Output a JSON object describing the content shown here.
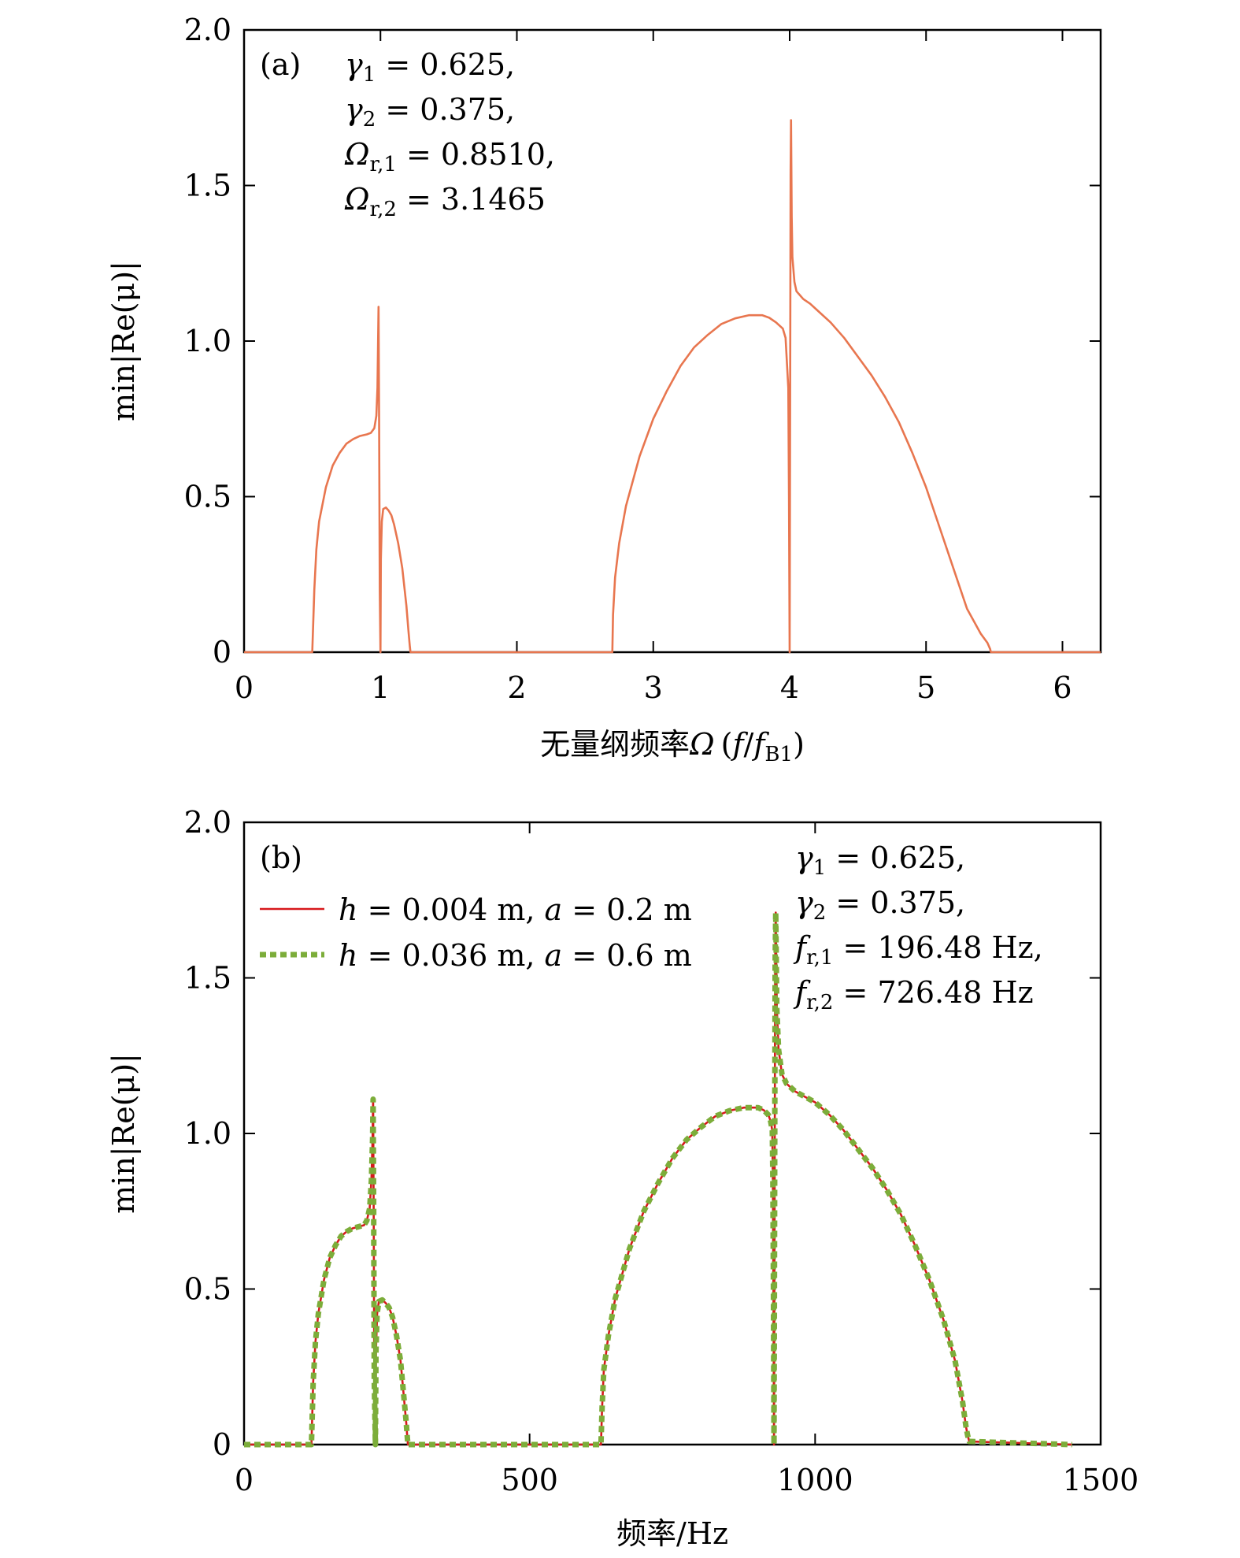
{
  "chart_data": [
    {
      "type": "line",
      "panel_label": "(a)",
      "ylabel": "min|Re(μ)|",
      "xlabel_prefix": "无量纲频率",
      "xlabel_symbol": "Ω",
      "xlabel_paren_open": "(",
      "xlabel_f": "f",
      "xlabel_slash": "/",
      "xlabel_fb": "f",
      "xlabel_fb_sub": "B1",
      "xlabel_paren_close": ")",
      "xlim": [
        0,
        6.28
      ],
      "ylim": [
        0,
        2.0
      ],
      "x_ticks": [
        "0",
        "1",
        "2",
        "3",
        "4",
        "5",
        "6"
      ],
      "x_tick_values": [
        0,
        1,
        2,
        3,
        4,
        5,
        6
      ],
      "y_ticks": [
        "0",
        "0.5",
        "1.0",
        "1.5",
        "2.0"
      ],
      "y_tick_values": [
        0,
        0.5,
        1.0,
        1.5,
        2.0
      ],
      "params": [
        {
          "sym": "γ",
          "sub": "1",
          "rest": " = 0.625,"
        },
        {
          "sym": "γ",
          "sub": "2",
          "rest": " = 0.375,"
        },
        {
          "sym": "Ω",
          "sub": "r,1",
          "rest": " = 0.8510,"
        },
        {
          "sym": "Ω",
          "sub": "r,2",
          "rest": " = 3.1465"
        }
      ],
      "series": [
        {
          "name": "min|Re(μ)|",
          "color": "#e8764f",
          "style": "solid",
          "x": [
            0,
            0.5,
            0.515,
            0.53,
            0.55,
            0.6,
            0.65,
            0.7,
            0.75,
            0.8,
            0.85,
            0.9,
            0.93,
            0.955,
            0.97,
            0.978,
            0.982,
            0.986,
            0.99,
            0.995,
            1.0,
            1.003,
            1.01,
            1.02,
            1.04,
            1.06,
            1.08,
            1.1,
            1.13,
            1.16,
            1.19,
            1.205,
            1.215,
            1.22,
            2.7,
            2.705,
            2.72,
            2.75,
            2.8,
            2.9,
            3.0,
            3.1,
            3.2,
            3.3,
            3.4,
            3.5,
            3.6,
            3.7,
            3.8,
            3.85,
            3.9,
            3.95,
            3.97,
            3.99,
            3.995,
            4.0,
            4.003,
            4.007,
            4.01,
            4.015,
            4.02,
            4.035,
            4.05,
            4.1,
            4.15,
            4.2,
            4.3,
            4.4,
            4.5,
            4.6,
            4.7,
            4.8,
            4.9,
            5.0,
            5.1,
            5.2,
            5.3,
            5.4,
            5.45,
            5.47,
            5.475,
            6.28
          ],
          "y": [
            0,
            0,
            0.2,
            0.33,
            0.42,
            0.53,
            0.6,
            0.64,
            0.67,
            0.685,
            0.695,
            0.7,
            0.705,
            0.72,
            0.76,
            0.85,
            0.98,
            1.11,
            0.75,
            0.2,
            0,
            0.3,
            0.42,
            0.46,
            0.465,
            0.455,
            0.44,
            0.41,
            0.35,
            0.27,
            0.15,
            0.07,
            0.02,
            0,
            0,
            0.12,
            0.24,
            0.35,
            0.47,
            0.63,
            0.75,
            0.84,
            0.92,
            0.98,
            1.02,
            1.055,
            1.073,
            1.083,
            1.083,
            1.075,
            1.06,
            1.04,
            1.01,
            0.85,
            0.5,
            0,
            0.7,
            1.55,
            1.71,
            1.4,
            1.27,
            1.19,
            1.16,
            1.135,
            1.12,
            1.1,
            1.06,
            1.01,
            0.95,
            0.89,
            0.82,
            0.74,
            0.64,
            0.53,
            0.4,
            0.27,
            0.14,
            0.06,
            0.03,
            0.01,
            0,
            0
          ]
        }
      ]
    },
    {
      "type": "line",
      "panel_label": "(b)",
      "ylabel": "min|Re(μ)|",
      "xlabel": "频率/Hz",
      "xlim": [
        0,
        1500
      ],
      "ylim": [
        0,
        2.0
      ],
      "x_ticks": [
        "0",
        "500",
        "1000",
        "1500"
      ],
      "x_tick_values": [
        0,
        500,
        1000,
        1500
      ],
      "y_ticks": [
        "0",
        "0.5",
        "1.0",
        "1.5",
        "2.0"
      ],
      "y_tick_values": [
        0,
        0.5,
        1.0,
        1.5,
        2.0
      ],
      "params": [
        {
          "sym": "γ",
          "sub": "1",
          "rest": " = 0.625,"
        },
        {
          "sym": "γ",
          "sub": "2",
          "rest": " = 0.375,"
        },
        {
          "sym": "f",
          "sub": "r,1",
          "rest": " = 196.48 Hz,"
        },
        {
          "sym": "f",
          "sub": "r,2",
          "rest": " = 726.48 Hz"
        }
      ],
      "legend": [
        {
          "h": "h",
          "h_val": " = 0.004 m, ",
          "a": "a",
          "a_val": " = 0.2 m"
        },
        {
          "h": "h",
          "h_val": " = 0.036 m, ",
          "a": "a",
          "a_val": " = 0.6 m"
        }
      ],
      "series": [
        {
          "name": "h = 0.004 m, a = 0.2 m",
          "color": "#d7191c",
          "style": "solid",
          "x": [
            0,
            118,
            121,
            125,
            130,
            140,
            150,
            160,
            170,
            180,
            190,
            200,
            210,
            215,
            220,
            223,
            225,
            226,
            227,
            228,
            230,
            231,
            233,
            236,
            242,
            248,
            254,
            260,
            267,
            274,
            280,
            284,
            286,
            287,
            625,
            627,
            630,
            638,
            650,
            675,
            700,
            725,
            750,
            775,
            800,
            825,
            850,
            875,
            900,
            910,
            918,
            922,
            925,
            926,
            927,
            928,
            929,
            930,
            931,
            933,
            936,
            942,
            950,
            965,
            980,
            1000,
            1025,
            1050,
            1075,
            1100,
            1125,
            1150,
            1175,
            1200,
            1225,
            1245,
            1258,
            1264,
            1267,
            1270,
            1450
          ],
          "y": [
            0,
            0,
            0.2,
            0.33,
            0.42,
            0.53,
            0.6,
            0.64,
            0.67,
            0.685,
            0.695,
            0.7,
            0.705,
            0.72,
            0.76,
            0.85,
            0.98,
            1.11,
            0.75,
            0.2,
            0,
            0.3,
            0.42,
            0.46,
            0.465,
            0.455,
            0.44,
            0.41,
            0.35,
            0.27,
            0.15,
            0.07,
            0.02,
            0,
            0,
            0.12,
            0.24,
            0.35,
            0.47,
            0.63,
            0.75,
            0.84,
            0.92,
            0.98,
            1.02,
            1.055,
            1.073,
            1.083,
            1.083,
            1.075,
            1.06,
            1.04,
            1.01,
            0.85,
            0.5,
            0,
            0.7,
            1.55,
            1.71,
            1.4,
            1.27,
            1.19,
            1.16,
            1.135,
            1.12,
            1.1,
            1.06,
            1.01,
            0.95,
            0.89,
            0.82,
            0.74,
            0.64,
            0.53,
            0.4,
            0.27,
            0.14,
            0.06,
            0.03,
            0.01,
            0
          ]
        },
        {
          "name": "h = 0.036 m, a = 0.6 m",
          "color": "#7cad3a",
          "style": "dotted",
          "x": [
            0,
            118,
            121,
            125,
            130,
            140,
            150,
            160,
            170,
            180,
            190,
            200,
            210,
            215,
            220,
            223,
            225,
            226,
            227,
            228,
            230,
            231,
            233,
            236,
            242,
            248,
            254,
            260,
            267,
            274,
            280,
            284,
            286,
            287,
            625,
            627,
            630,
            638,
            650,
            675,
            700,
            725,
            750,
            775,
            800,
            825,
            850,
            875,
            900,
            910,
            918,
            922,
            925,
            926,
            927,
            928,
            929,
            930,
            931,
            933,
            936,
            942,
            950,
            965,
            980,
            1000,
            1025,
            1050,
            1075,
            1100,
            1125,
            1150,
            1175,
            1200,
            1225,
            1245,
            1258,
            1264,
            1267,
            1270,
            1450
          ],
          "y": [
            0,
            0,
            0.2,
            0.33,
            0.42,
            0.53,
            0.6,
            0.64,
            0.67,
            0.685,
            0.695,
            0.7,
            0.705,
            0.72,
            0.76,
            0.85,
            0.98,
            1.11,
            0.75,
            0.2,
            0,
            0.3,
            0.42,
            0.46,
            0.465,
            0.455,
            0.44,
            0.41,
            0.35,
            0.27,
            0.15,
            0.07,
            0.02,
            0,
            0,
            0.12,
            0.24,
            0.35,
            0.47,
            0.63,
            0.75,
            0.84,
            0.92,
            0.98,
            1.02,
            1.055,
            1.073,
            1.083,
            1.083,
            1.075,
            1.06,
            1.04,
            1.01,
            0.85,
            0.5,
            0,
            0.7,
            1.55,
            1.71,
            1.4,
            1.27,
            1.19,
            1.16,
            1.135,
            1.12,
            1.1,
            1.06,
            1.01,
            0.95,
            0.89,
            0.82,
            0.74,
            0.64,
            0.53,
            0.4,
            0.27,
            0.14,
            0.06,
            0.03,
            0.01,
            0
          ]
        }
      ]
    }
  ]
}
